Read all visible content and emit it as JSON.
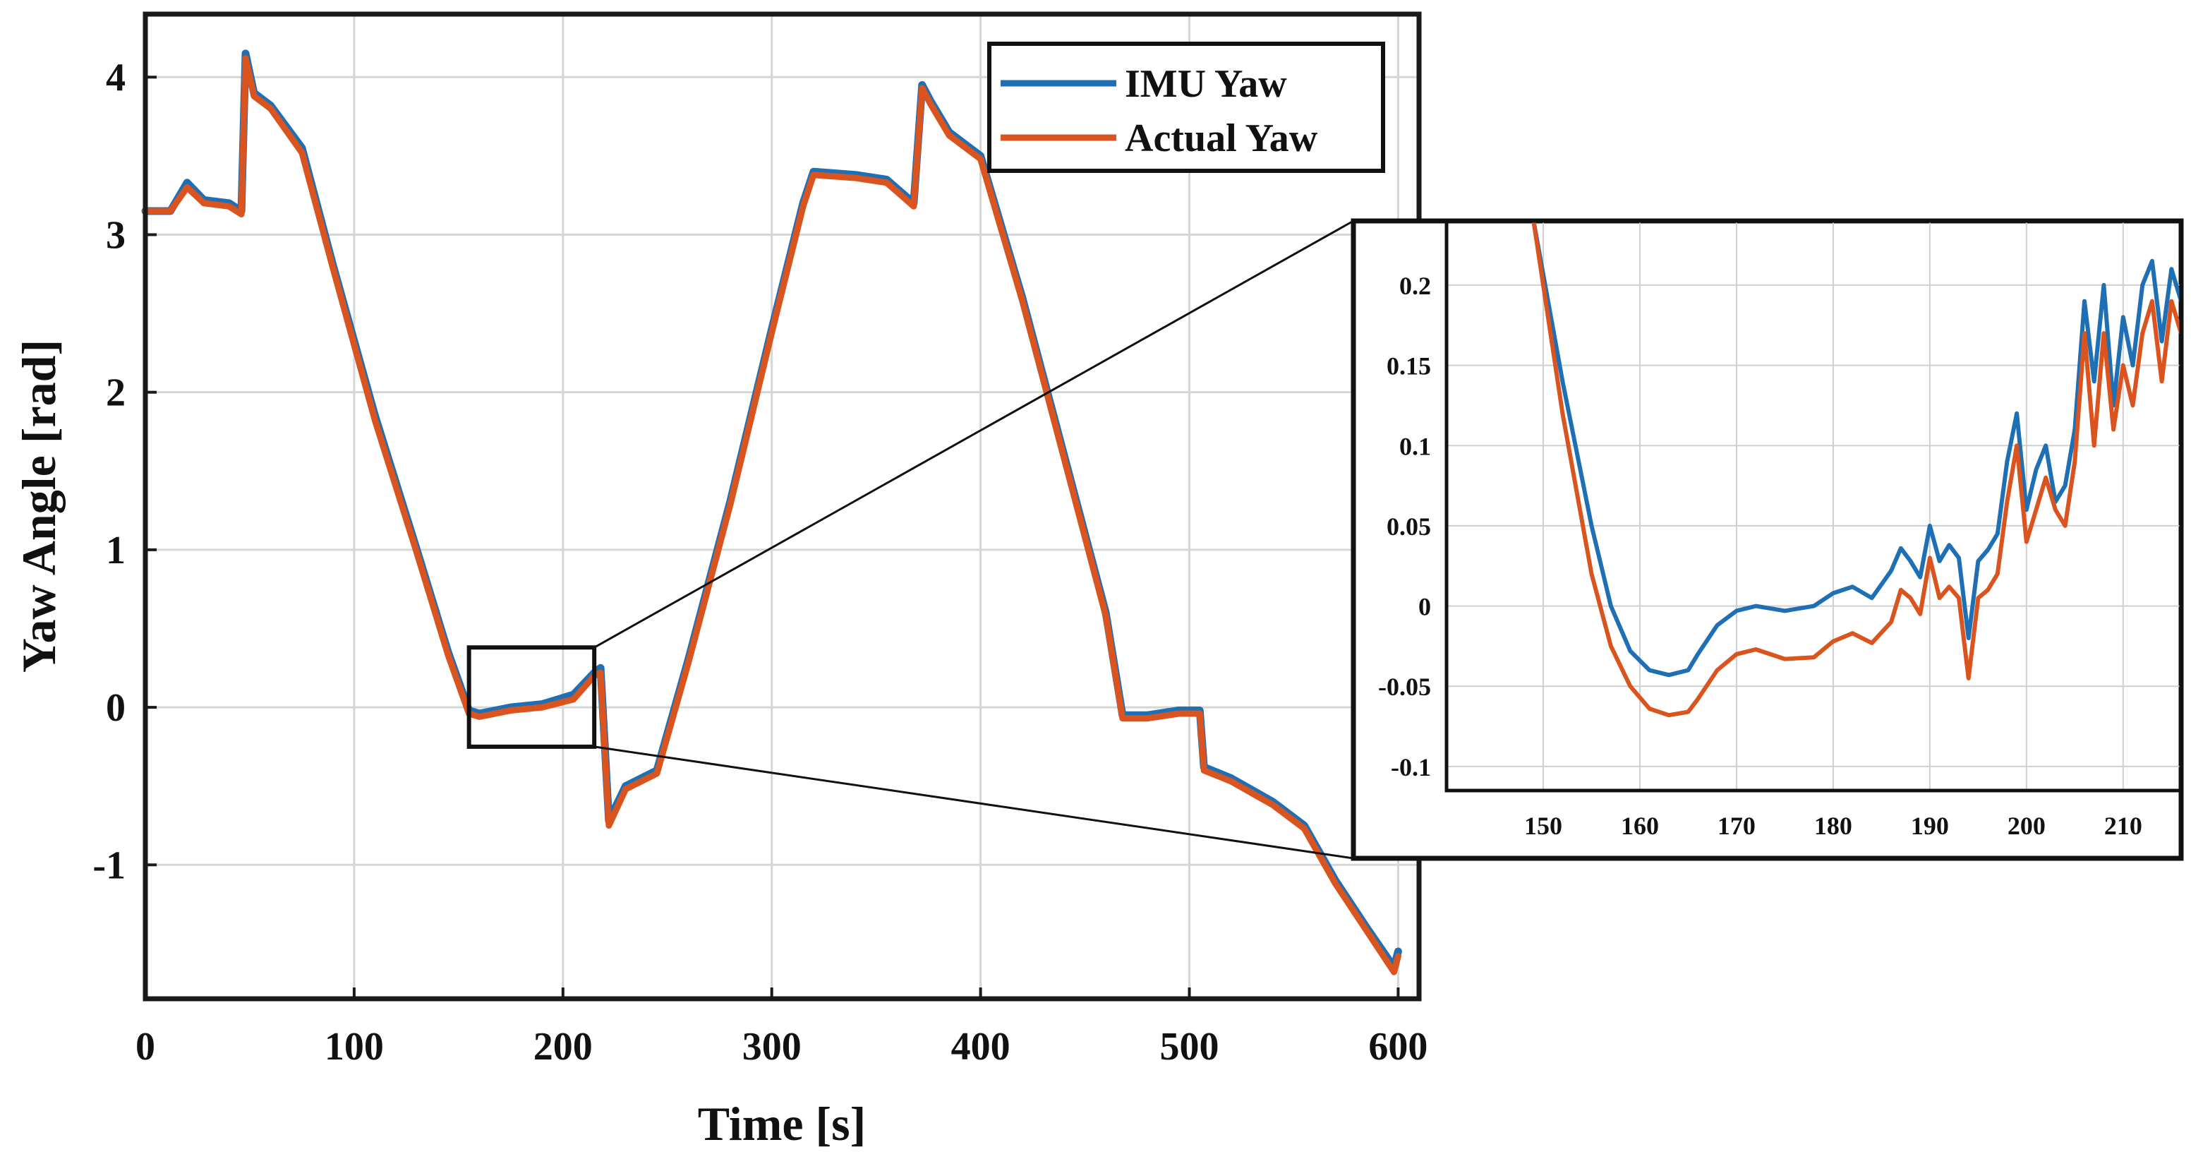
{
  "chart_data": [
    {
      "type": "line",
      "title": "",
      "xlabel": "Time [s]",
      "ylabel": "Yaw Angle [rad]",
      "xlim": [
        0,
        610
      ],
      "ylim": [
        -1.85,
        4.4
      ],
      "xticks": [
        0,
        100,
        200,
        300,
        400,
        500,
        600
      ],
      "yticks": [
        -1,
        0,
        1,
        2,
        3,
        4
      ],
      "xtick_labels": [
        "0",
        "100",
        "200",
        "300",
        "400",
        "500",
        "600"
      ],
      "ytick_labels": [
        "-1",
        "0",
        "1",
        "2",
        "3",
        "4"
      ],
      "grid": true,
      "legend": {
        "position": "top-right",
        "entries": [
          "IMU Yaw",
          "Actual Yaw"
        ]
      },
      "series": [
        {
          "name": "IMU Yaw",
          "color": "#1f6fb5",
          "x": [
            0,
            12,
            20,
            28,
            40,
            46,
            48,
            52,
            60,
            75,
            90,
            110,
            130,
            145,
            155,
            160,
            175,
            190,
            205,
            215,
            218,
            222,
            230,
            245,
            260,
            280,
            300,
            315,
            320,
            340,
            355,
            368,
            372,
            376,
            385,
            400,
            420,
            440,
            460,
            468,
            480,
            495,
            505,
            507,
            520,
            540,
            555,
            570,
            585,
            598,
            600
          ],
          "y": [
            3.15,
            3.15,
            3.33,
            3.22,
            3.2,
            3.15,
            4.15,
            3.9,
            3.82,
            3.55,
            2.8,
            1.85,
            1.0,
            0.35,
            -0.02,
            -0.04,
            0.0,
            0.02,
            0.08,
            0.22,
            0.25,
            -0.72,
            -0.5,
            -0.4,
            0.3,
            1.3,
            2.4,
            3.2,
            3.4,
            3.38,
            3.35,
            3.2,
            3.95,
            3.85,
            3.65,
            3.5,
            2.6,
            1.6,
            0.6,
            -0.05,
            -0.05,
            -0.02,
            -0.02,
            -0.38,
            -0.45,
            -0.6,
            -0.75,
            -1.1,
            -1.4,
            -1.65,
            -1.55
          ]
        },
        {
          "name": "Actual Yaw",
          "color": "#d9541e",
          "x": [
            0,
            12,
            20,
            28,
            40,
            46,
            48,
            52,
            60,
            75,
            90,
            110,
            130,
            145,
            155,
            160,
            175,
            190,
            205,
            215,
            218,
            222,
            230,
            245,
            260,
            280,
            300,
            315,
            320,
            340,
            355,
            368,
            372,
            376,
            385,
            400,
            420,
            440,
            460,
            468,
            480,
            495,
            505,
            507,
            520,
            540,
            555,
            570,
            585,
            598,
            600
          ],
          "y": [
            3.15,
            3.15,
            3.3,
            3.2,
            3.18,
            3.13,
            4.12,
            3.88,
            3.8,
            3.52,
            2.78,
            1.82,
            0.98,
            0.33,
            -0.04,
            -0.06,
            -0.02,
            0.0,
            0.05,
            0.2,
            0.22,
            -0.75,
            -0.52,
            -0.42,
            0.28,
            1.28,
            2.38,
            3.18,
            3.38,
            3.36,
            3.33,
            3.18,
            3.93,
            3.83,
            3.63,
            3.48,
            2.58,
            1.58,
            0.58,
            -0.07,
            -0.07,
            -0.04,
            -0.04,
            -0.4,
            -0.47,
            -0.62,
            -0.77,
            -1.12,
            -1.42,
            -1.68,
            -1.58
          ]
        }
      ],
      "annotations": [
        {
          "type": "zoom-box",
          "x": [
            155,
            215
          ],
          "y": [
            -0.25,
            0.38
          ]
        }
      ]
    },
    {
      "type": "line",
      "title": "",
      "xlabel": "",
      "ylabel": "",
      "xlim": [
        140,
        216
      ],
      "ylim": [
        -0.115,
        0.24
      ],
      "xticks": [
        150,
        160,
        170,
        180,
        190,
        200,
        210
      ],
      "yticks": [
        -0.1,
        -0.05,
        0,
        0.05,
        0.1,
        0.15,
        0.2
      ],
      "xtick_labels": [
        "150",
        "160",
        "170",
        "180",
        "190",
        "200",
        "210"
      ],
      "ytick_labels": [
        "-0.1",
        "-0.05",
        "0",
        "0.05",
        "0.1",
        "0.15",
        "0.2"
      ],
      "grid": true,
      "series": [
        {
          "name": "IMU Yaw",
          "color": "#1f6fb5",
          "x": [
            149,
            152,
            155,
            157,
            159,
            161,
            163,
            165,
            166,
            168,
            170,
            172,
            175,
            178,
            180,
            182,
            184,
            186,
            187,
            188,
            189,
            190,
            191,
            192,
            193,
            194,
            195,
            196,
            197,
            198,
            199,
            200,
            201,
            202,
            203,
            204,
            205,
            206,
            207,
            208,
            209,
            210,
            211,
            212,
            213,
            214,
            215,
            216
          ],
          "y": [
            0.24,
            0.14,
            0.05,
            0.0,
            -0.028,
            -0.04,
            -0.043,
            -0.04,
            -0.03,
            -0.012,
            -0.003,
            0.0,
            -0.003,
            0.0,
            0.008,
            0.012,
            0.005,
            0.022,
            0.036,
            0.028,
            0.018,
            0.05,
            0.028,
            0.038,
            0.03,
            -0.02,
            0.028,
            0.035,
            0.045,
            0.09,
            0.12,
            0.06,
            0.085,
            0.1,
            0.065,
            0.075,
            0.11,
            0.19,
            0.14,
            0.2,
            0.125,
            0.18,
            0.15,
            0.2,
            0.215,
            0.165,
            0.21,
            0.19
          ]
        },
        {
          "name": "Actual Yaw",
          "color": "#d9541e",
          "x": [
            149,
            152,
            155,
            157,
            159,
            161,
            163,
            165,
            166,
            168,
            170,
            172,
            175,
            178,
            180,
            182,
            184,
            186,
            187,
            188,
            189,
            190,
            191,
            192,
            193,
            194,
            195,
            196,
            197,
            198,
            199,
            200,
            201,
            202,
            203,
            204,
            205,
            206,
            207,
            208,
            209,
            210,
            211,
            212,
            213,
            214,
            215,
            216
          ],
          "y": [
            0.24,
            0.12,
            0.02,
            -0.025,
            -0.05,
            -0.064,
            -0.068,
            -0.066,
            -0.058,
            -0.04,
            -0.03,
            -0.027,
            -0.033,
            -0.032,
            -0.022,
            -0.017,
            -0.023,
            -0.01,
            0.01,
            0.005,
            -0.005,
            0.03,
            0.005,
            0.012,
            0.005,
            -0.045,
            0.005,
            0.01,
            0.02,
            0.065,
            0.1,
            0.04,
            0.06,
            0.08,
            0.06,
            0.05,
            0.09,
            0.17,
            0.1,
            0.17,
            0.11,
            0.15,
            0.125,
            0.17,
            0.19,
            0.14,
            0.19,
            0.17
          ]
        }
      ]
    }
  ]
}
